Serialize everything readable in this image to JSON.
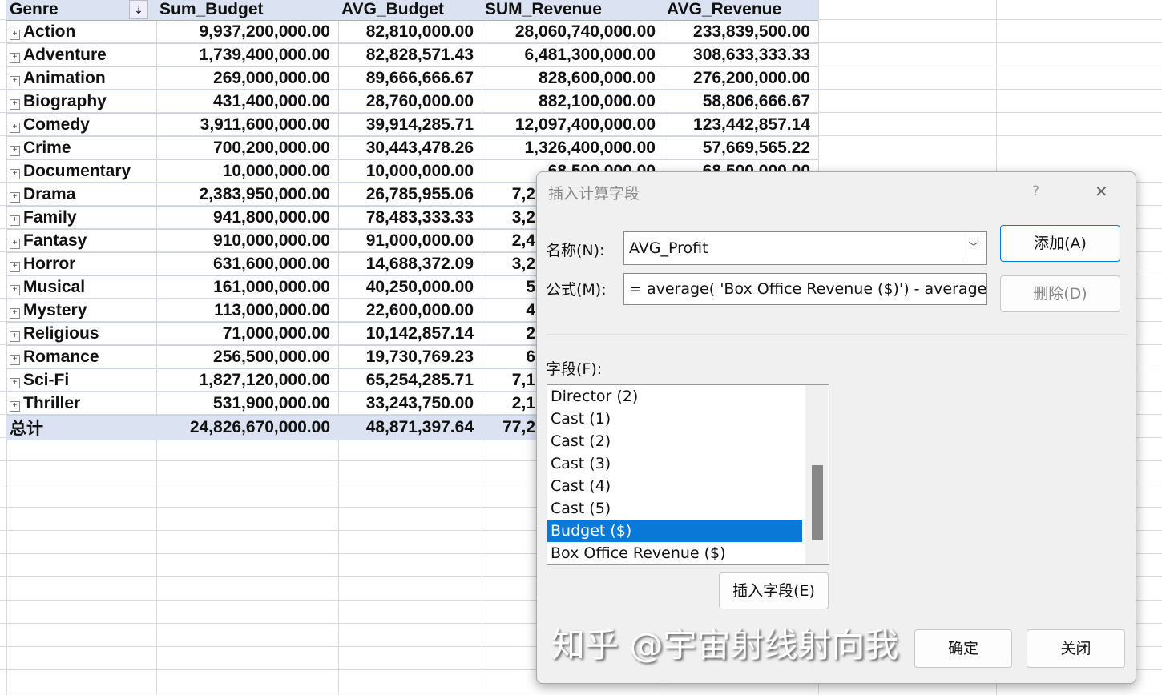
{
  "pivot": {
    "headers": [
      "Genre",
      "Sum_Budget",
      "AVG_Budget",
      "SUM_Revenue",
      "AVG_Revenue"
    ],
    "rows": [
      [
        "Action",
        "9,937,200,000.00",
        "82,810,000.00",
        "28,060,740,000.00",
        "233,839,500.00"
      ],
      [
        "Adventure",
        "1,739,400,000.00",
        "82,828,571.43",
        "6,481,300,000.00",
        "308,633,333.33"
      ],
      [
        "Animation",
        "269,000,000.00",
        "89,666,666.67",
        "828,600,000.00",
        "276,200,000.00"
      ],
      [
        "Biography",
        "431,400,000.00",
        "28,760,000.00",
        "882,100,000.00",
        "58,806,666.67"
      ],
      [
        "Comedy",
        "3,911,600,000.00",
        "39,914,285.71",
        "12,097,400,000.00",
        "123,442,857.14"
      ],
      [
        "Crime",
        "700,200,000.00",
        "30,443,478.26",
        "1,326,400,000.00",
        "57,669,565.22"
      ],
      [
        "Documentary",
        "10,000,000.00",
        "10,000,000.00",
        "68,500,000.00",
        "68,500,000.00"
      ],
      [
        "Drama",
        "2,383,950,000.00",
        "26,785,955.06",
        "7,2",
        ""
      ],
      [
        "Family",
        "941,800,000.00",
        "78,483,333.33",
        "3,2",
        ""
      ],
      [
        "Fantasy",
        "910,000,000.00",
        "91,000,000.00",
        "2,4",
        ""
      ],
      [
        "Horror",
        "631,600,000.00",
        "14,688,372.09",
        "3,2",
        ""
      ],
      [
        "Musical",
        "161,000,000.00",
        "40,250,000.00",
        "5",
        ""
      ],
      [
        "Mystery",
        "113,000,000.00",
        "22,600,000.00",
        "4",
        ""
      ],
      [
        "Religious",
        "71,000,000.00",
        "10,142,857.14",
        "2",
        ""
      ],
      [
        "Romance",
        "256,500,000.00",
        "19,730,769.23",
        "6",
        ""
      ],
      [
        "Sci-Fi",
        "1,827,120,000.00",
        "65,254,285.71",
        "7,1",
        ""
      ],
      [
        "Thriller",
        "531,900,000.00",
        "33,243,750.00",
        "2,1",
        ""
      ]
    ],
    "total": [
      "总计",
      "24,826,670,000.00",
      "48,871,397.64",
      "77,2",
      ""
    ]
  },
  "dialog": {
    "title": "插入计算字段",
    "help": "?",
    "close": "✕",
    "name_label": "名称(N):",
    "name_value": "AVG_Profit",
    "formula_label": "公式(M):",
    "formula_value": "= average( 'Box Office Revenue ($)') - average(",
    "add": "添加(A)",
    "delete": "删除(D)",
    "fields_label": "字段(F):",
    "fields": [
      "Director (2)",
      "Cast (1)",
      "Cast (2)",
      "Cast (3)",
      "Cast (4)",
      "Cast (5)",
      "Budget ($)",
      "Box Office Revenue ($)"
    ],
    "selected_field": "Budget ($)",
    "insert_field": "插入字段(E)",
    "ok": "确定",
    "close_button": "关闭"
  },
  "watermark": "知乎 @宇宙射线射向我"
}
